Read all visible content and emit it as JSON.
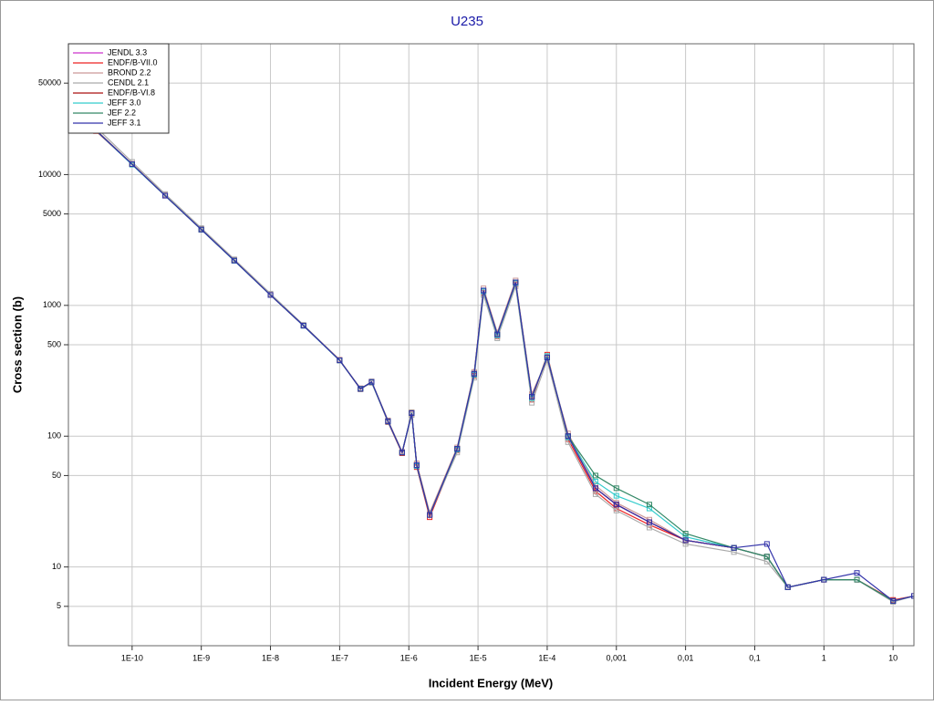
{
  "chart_data": {
    "type": "line",
    "title": "U235",
    "x_label": "Incident Energy (MeV)",
    "y_label": "Cross section (b)",
    "xscale": "log",
    "yscale": "log",
    "grid": true,
    "legend": "upper left",
    "xlim": [
      1.2e-11,
      20
    ],
    "ylim": [
      2.5,
      100000
    ],
    "xticks": [
      {
        "value": 1e-10,
        "label": "1E-10"
      },
      {
        "value": 1e-09,
        "label": "1E-9"
      },
      {
        "value": 1e-08,
        "label": "1E-8"
      },
      {
        "value": 1e-07,
        "label": "1E-7"
      },
      {
        "value": 1e-06,
        "label": "1E-6"
      },
      {
        "value": 1e-05,
        "label": "1E-5"
      },
      {
        "value": 0.0001,
        "label": "1E-4"
      },
      {
        "value": 0.001,
        "label": "0,001"
      },
      {
        "value": 0.01,
        "label": "0,01"
      },
      {
        "value": 0.1,
        "label": "0,1"
      },
      1,
      10
    ],
    "yticks": [
      5,
      10,
      50,
      100,
      500,
      1000,
      5000,
      10000,
      50000
    ],
    "x": [
      3e-11,
      1e-10,
      3e-10,
      1e-09,
      3e-09,
      1e-08,
      3e-08,
      1e-07,
      2e-07,
      2.9e-07,
      5e-07,
      8e-07,
      1.1e-06,
      1.3e-06,
      2e-06,
      5e-06,
      8.8e-06,
      1.2e-05,
      1.9e-05,
      3.5e-05,
      6e-05,
      0.0001,
      0.0002,
      0.0005,
      0.001,
      0.003,
      0.01,
      0.05,
      0.15,
      0.3,
      1,
      3,
      10,
      20
    ],
    "series": [
      {
        "name": "JENDL 3.3",
        "color": "#cc33cc",
        "values": [
          21800,
          12000,
          6900,
          3800,
          2200,
          1200,
          700,
          380,
          230,
          260,
          130,
          75,
          150,
          60,
          25,
          80,
          300,
          1300,
          600,
          1500,
          200,
          400,
          100,
          40,
          30,
          22,
          16,
          14,
          12,
          7,
          8,
          8,
          5.5,
          6
        ]
      },
      {
        "name": "ENDF/B-VII.0",
        "color": "#ee2222",
        "values": [
          21500,
          12000,
          6900,
          3800,
          2200,
          1200,
          700,
          380,
          232,
          258,
          128,
          74,
          152,
          58,
          24,
          78,
          290,
          1250,
          580,
          1450,
          190,
          420,
          95,
          38,
          28,
          21,
          16,
          14,
          12,
          7,
          8,
          8,
          5.6,
          6
        ]
      },
      {
        "name": "BROND 2.2",
        "color": "#cc9999",
        "values": [
          22000,
          12100,
          7000,
          3850,
          2220,
          1210,
          705,
          385,
          228,
          262,
          132,
          76,
          148,
          62,
          26,
          82,
          310,
          1350,
          620,
          1550,
          210,
          390,
          105,
          42,
          31,
          23,
          16,
          14,
          12,
          7,
          8,
          8,
          5.5,
          6
        ]
      },
      {
        "name": "CENDL 2.1",
        "color": "#aaaaaa",
        "values": [
          23000,
          12500,
          7100,
          3900,
          2250,
          1230,
          710,
          380,
          230,
          255,
          130,
          75,
          145,
          60,
          25,
          75,
          280,
          1200,
          560,
          1400,
          180,
          380,
          90,
          36,
          27,
          20,
          15,
          13,
          11,
          7,
          8,
          8,
          5.4,
          6
        ]
      },
      {
        "name": "ENDF/B-VI.8",
        "color": "#aa1111",
        "values": [
          21800,
          12000,
          6900,
          3800,
          2200,
          1200,
          700,
          380,
          230,
          260,
          130,
          75,
          150,
          60,
          25,
          80,
          300,
          1300,
          600,
          1500,
          200,
          400,
          100,
          40,
          30,
          22,
          16,
          14,
          12,
          7,
          8,
          8,
          5.5,
          6
        ]
      },
      {
        "name": "JEFF 3.0",
        "color": "#33cccc",
        "values": [
          21700,
          11900,
          6900,
          3790,
          2190,
          1200,
          698,
          379,
          231,
          259,
          129,
          75,
          151,
          59,
          25,
          79,
          295,
          1280,
          590,
          1480,
          195,
          410,
          98,
          45,
          35,
          28,
          17,
          14,
          12,
          7,
          8,
          8,
          5.5,
          6
        ]
      },
      {
        "name": "JEF 2.2",
        "color": "#338866",
        "values": [
          21800,
          12000,
          6900,
          3800,
          2200,
          1200,
          700,
          380,
          230,
          260,
          130,
          75,
          150,
          60,
          25,
          80,
          300,
          1300,
          600,
          1500,
          200,
          400,
          100,
          50,
          40,
          30,
          18,
          14,
          12,
          7,
          8,
          8,
          5.5,
          6
        ]
      },
      {
        "name": "JEFF 3.1",
        "color": "#3333aa",
        "values": [
          21800,
          12000,
          6900,
          3800,
          2200,
          1200,
          700,
          380,
          230,
          260,
          130,
          75,
          150,
          60,
          25,
          80,
          300,
          1300,
          600,
          1500,
          200,
          400,
          100,
          40,
          30,
          22,
          16,
          14,
          15,
          7,
          8,
          9,
          5.5,
          6
        ]
      }
    ]
  }
}
